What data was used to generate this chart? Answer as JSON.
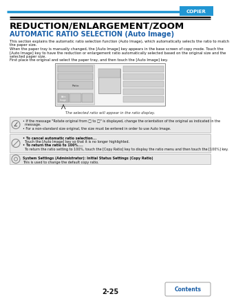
{
  "title1": "REDUCTION/ENLARGEMENT/ZOOM",
  "title2": "AUTOMATIC RATIO SELECTION (Auto Image)",
  "body_text": [
    "This section explains the automatic ratio selection function (Auto Image), which automatically selects the ratio to match",
    "the paper size.",
    "When the paper tray is manually changed, the [Auto Image] key appears in the base screen of copy mode. Touch the",
    "[Auto Image] key to have the reduction or enlargement ratio automatically selected based on the original size and the",
    "selected paper size.",
    "First place the original and select the paper tray, and then touch the [Auto Image] key."
  ],
  "caption": "The selected ratio will appear in the ratio display.",
  "note1_lines": [
    "• If the message \"Rotate original from □ to □\" is displayed, change the orientation of the original as indicated in the",
    "  message.",
    "• For a non-standard size original, the size must be entered in order to use Auto Image."
  ],
  "note2_lines": [
    "• To cancel automatic ratio selection...",
    "  Touch the [Auto Image] key so that it is no longer highlighted.",
    "• To return the ratio to 100%....",
    "  To return the ratio setting to 100%, touch the [Copy Ratio] key to display the ratio menu and then touch the [100%] key."
  ],
  "note3_bold": "System Settings (Administrator): Initial Status Settings (Copy Ratio)",
  "note3_text": "This is used to change the default copy ratio.",
  "page_num": "2-25",
  "header_text": "COPIER",
  "header_bg": "#2196d3",
  "bg_color": "#ffffff",
  "title1_color": "#000000",
  "title2_color": "#1a5fa8",
  "note_bg": "#e8e8e8",
  "note_border": "#b0b0b0",
  "contents_btn_color": "#1a5fa8",
  "double_rule_color": "#000000",
  "body_color": "#111111",
  "caption_color": "#333333"
}
